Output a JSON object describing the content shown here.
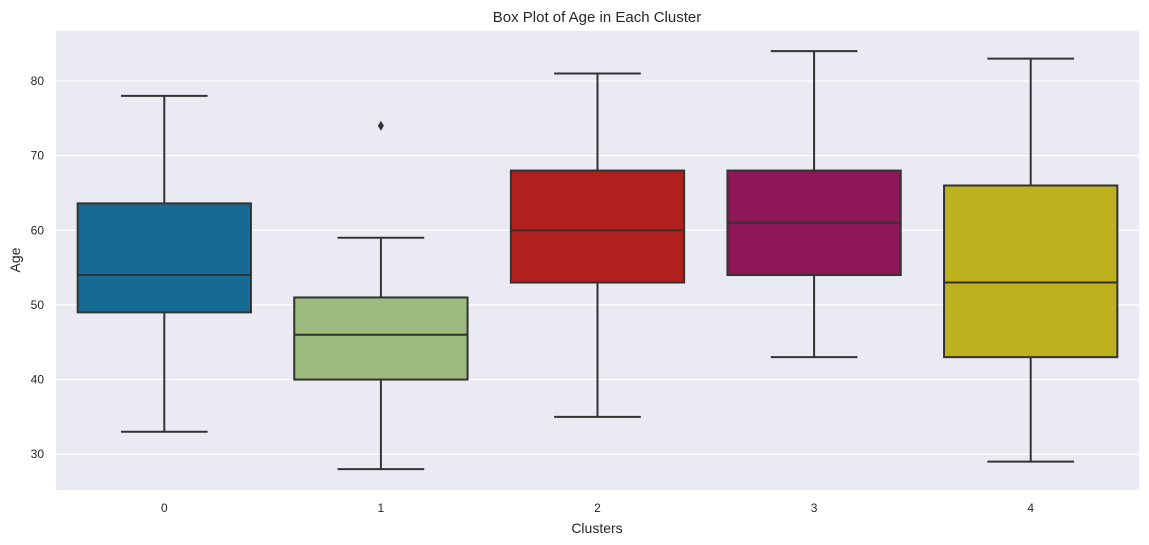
{
  "chart_data": {
    "type": "box",
    "title": "Box Plot of Age in Each Cluster",
    "xlabel": "Clusters",
    "ylabel": "Age",
    "categories": [
      "0",
      "1",
      "2",
      "3",
      "4"
    ],
    "ylim": [
      25.2,
      86.7
    ],
    "yticks": [
      30,
      40,
      50,
      60,
      70,
      80
    ],
    "grid": true,
    "boxes": [
      {
        "category": "0",
        "whisker_low": 33,
        "q1": 49,
        "median": 54,
        "q3": 63.6,
        "whisker_high": 78,
        "outliers": [],
        "color": "#156b93"
      },
      {
        "category": "1",
        "whisker_low": 28,
        "q1": 40,
        "median": 46,
        "q3": 51,
        "whisker_high": 59,
        "outliers": [
          74
        ],
        "color": "#9dba7f"
      },
      {
        "category": "2",
        "whisker_low": 35,
        "q1": 53,
        "median": 60,
        "q3": 68,
        "whisker_high": 81,
        "outliers": [],
        "color": "#b0201c"
      },
      {
        "category": "3",
        "whisker_low": 43,
        "q1": 54,
        "median": 61,
        "q3": 68,
        "whisker_high": 84,
        "outliers": [],
        "color": "#8d1757"
      },
      {
        "category": "4",
        "whisker_low": 29,
        "q1": 43,
        "median": 53,
        "q3": 66,
        "whisker_high": 83,
        "outliers": [],
        "color": "#bdb21e"
      }
    ],
    "colors": {
      "plot_background": "#eaeaf2",
      "grid": "#ffffff",
      "line": "#333333"
    }
  }
}
